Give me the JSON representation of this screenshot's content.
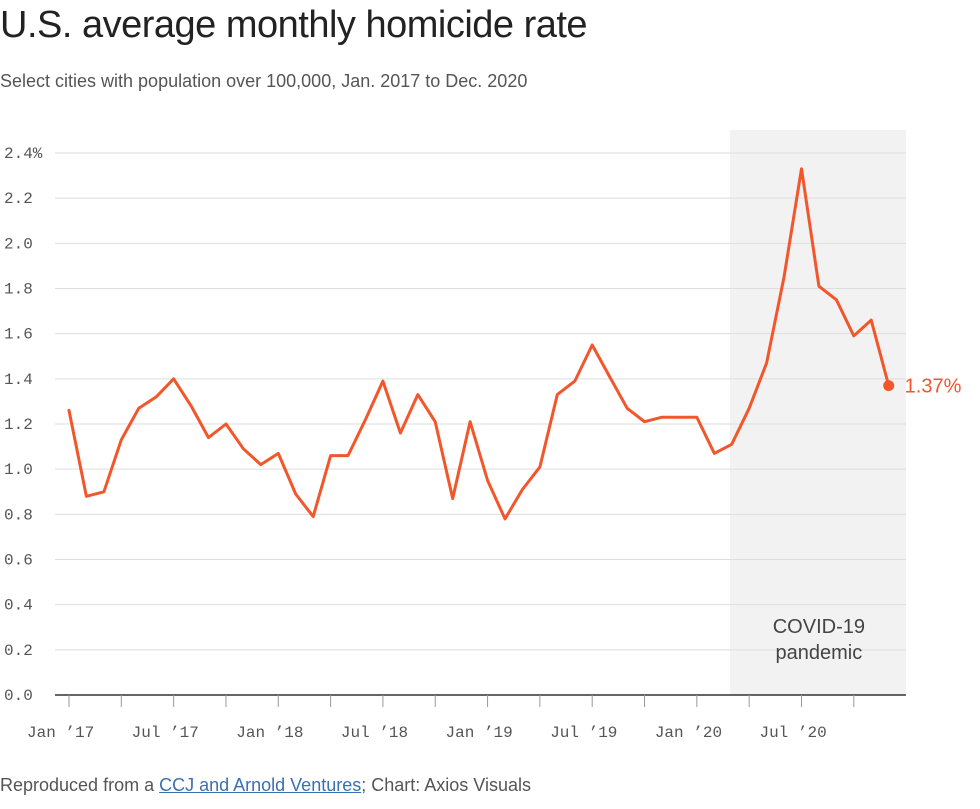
{
  "header": {
    "title": "U.S. average monthly homicide rate",
    "subtitle": "Select cities with population over 100,000, Jan. 2017 to Dec. 2020"
  },
  "footer": {
    "prefix": "Reproduced from a ",
    "link_text": "CCJ and Arnold Ventures",
    "suffix": "; Chart: Axios Visuals"
  },
  "colors": {
    "line": "#f2562a",
    "shade": "#f2f2f2",
    "grid": "#dddddd",
    "axis": "#333333",
    "tick_text": "#555555"
  },
  "chart_data": {
    "type": "line",
    "ylim": [
      0,
      2.4
    ],
    "yticks": [
      0,
      0.2,
      0.4,
      0.6,
      0.8,
      1.0,
      1.2,
      1.4,
      1.6,
      1.8,
      2.0,
      2.2,
      2.4
    ],
    "ytick_labels": [
      "0.0",
      "0.2",
      "0.4",
      "0.6",
      "0.8",
      "1.0",
      "1.2",
      "1.4",
      "1.6",
      "1.8",
      "2.0",
      "2.2",
      "2.4%"
    ],
    "x": [
      "2017-01",
      "2017-02",
      "2017-03",
      "2017-04",
      "2017-05",
      "2017-06",
      "2017-07",
      "2017-08",
      "2017-09",
      "2017-10",
      "2017-11",
      "2017-12",
      "2018-01",
      "2018-02",
      "2018-03",
      "2018-04",
      "2018-05",
      "2018-06",
      "2018-07",
      "2018-08",
      "2018-09",
      "2018-10",
      "2018-11",
      "2018-12",
      "2019-01",
      "2019-02",
      "2019-03",
      "2019-04",
      "2019-05",
      "2019-06",
      "2019-07",
      "2019-08",
      "2019-09",
      "2019-10",
      "2019-11",
      "2019-12",
      "2020-01",
      "2020-02",
      "2020-03",
      "2020-04",
      "2020-05",
      "2020-06",
      "2020-07",
      "2020-08",
      "2020-09",
      "2020-10",
      "2020-11",
      "2020-12"
    ],
    "values": [
      1.26,
      0.88,
      0.9,
      1.13,
      1.27,
      1.32,
      1.4,
      1.28,
      1.14,
      1.2,
      1.09,
      1.02,
      1.07,
      0.89,
      0.79,
      1.06,
      1.06,
      1.22,
      1.39,
      1.16,
      1.33,
      1.21,
      0.87,
      1.21,
      0.95,
      0.78,
      0.91,
      1.01,
      1.33,
      1.39,
      1.55,
      1.41,
      1.27,
      1.21,
      1.23,
      1.23,
      1.23,
      1.07,
      1.11,
      1.27,
      1.47,
      1.85,
      2.33,
      1.81,
      1.75,
      1.59,
      1.66,
      1.37
    ],
    "xtick_labels": [
      {
        "index": 0,
        "label": "Jan ’17"
      },
      {
        "index": 6,
        "label": "Jul ’17"
      },
      {
        "index": 12,
        "label": "Jan ’18"
      },
      {
        "index": 18,
        "label": "Jul ’18"
      },
      {
        "index": 24,
        "label": "Jan ’19"
      },
      {
        "index": 30,
        "label": "Jul ’19"
      },
      {
        "index": 36,
        "label": "Jan ’20"
      },
      {
        "index": 42,
        "label": "Jul ’20"
      }
    ],
    "shaded_region": {
      "start_index": 38,
      "label": [
        "COVID-19",
        "pandemic"
      ]
    },
    "end_label": "1.37%",
    "grid": true
  }
}
